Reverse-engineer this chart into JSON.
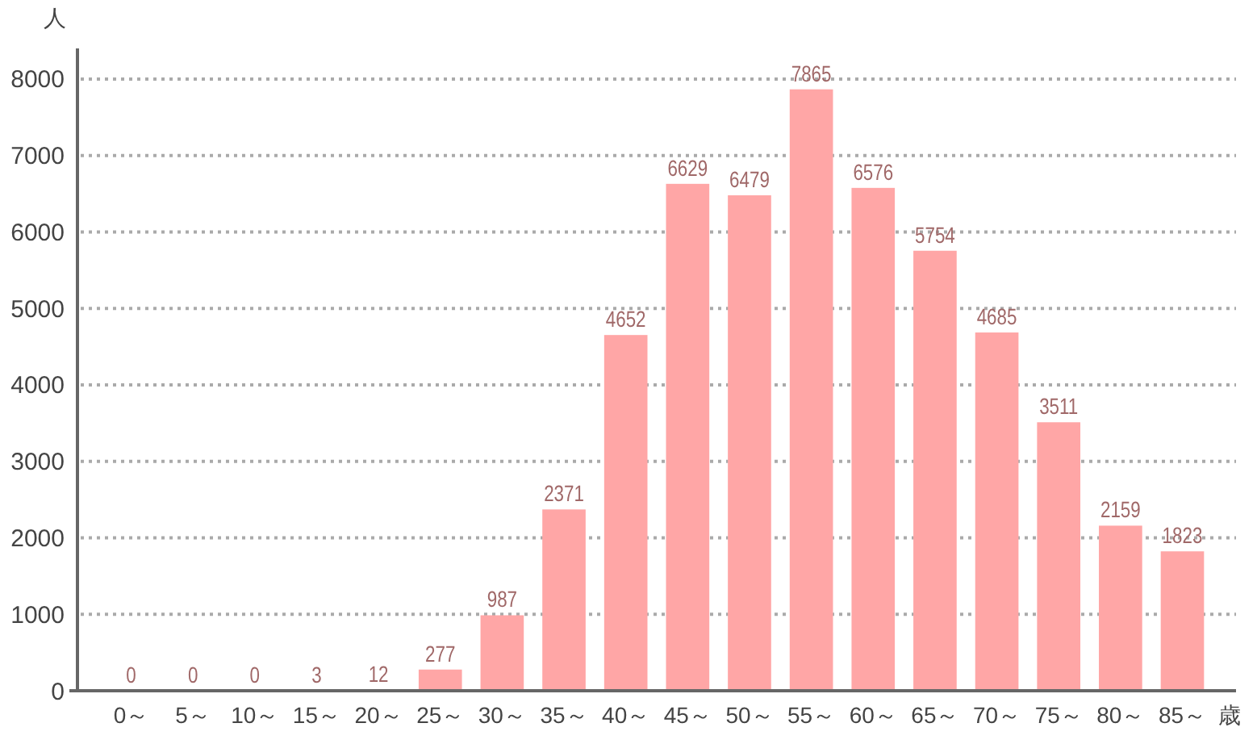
{
  "chart_data": {
    "type": "bar",
    "ylabel": "人",
    "xlabel": "歳",
    "categories": [
      "0～",
      "5～",
      "10～",
      "15～",
      "20～",
      "25～",
      "30～",
      "35～",
      "40～",
      "45～",
      "50～",
      "55～",
      "60～",
      "65～",
      "70～",
      "75～",
      "80～",
      "85～"
    ],
    "values": [
      0,
      0,
      0,
      3,
      12,
      277,
      987,
      2371,
      4652,
      6629,
      6479,
      7865,
      6576,
      5754,
      4685,
      3511,
      2159,
      1823
    ],
    "color": "#ffa6a6",
    "data_labels": true,
    "ylim": [
      0,
      8400
    ],
    "yticks": [
      0,
      1000,
      2000,
      3000,
      4000,
      5000,
      6000,
      7000,
      8000
    ],
    "grid": "y"
  }
}
